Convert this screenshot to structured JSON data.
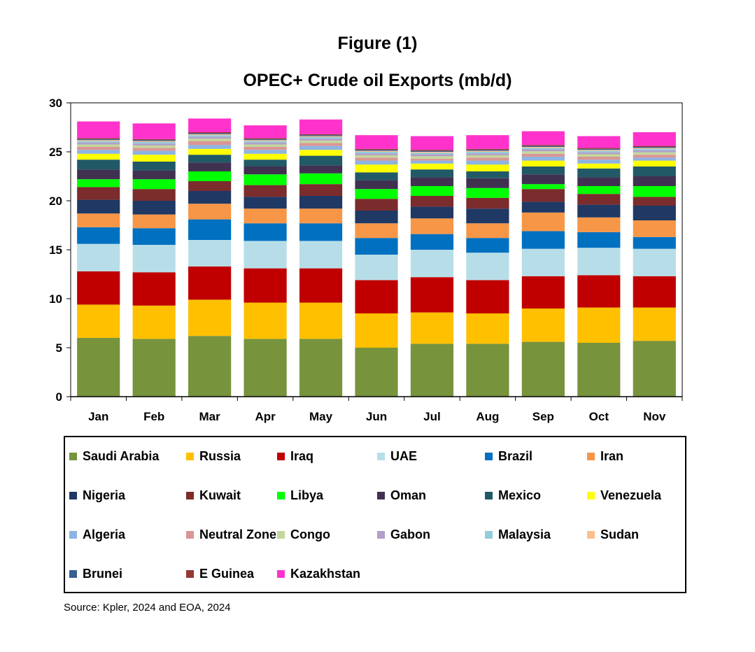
{
  "figure_label": "Figure (1)",
  "source": "Source: Kpler, 2024 and EOA, 2024",
  "chart_data": {
    "type": "bar",
    "stacked": true,
    "title": "OPEC+ Crude oil Exports (mb/d)",
    "xlabel": "",
    "ylabel": "",
    "ylim": [
      0,
      30
    ],
    "yticks": [
      "0",
      "5",
      "10",
      "15",
      "20",
      "25",
      "30"
    ],
    "grid": false,
    "legend_position": "bottom",
    "categories": [
      "Jan",
      "Feb",
      "Mar",
      "Apr",
      "May",
      "Jun",
      "Jul",
      "Aug",
      "Sep",
      "Oct",
      "Nov"
    ],
    "series": [
      {
        "name": "Saudi Arabia",
        "color": "#77933C",
        "values": [
          6.0,
          5.9,
          6.2,
          5.9,
          5.9,
          5.0,
          5.4,
          5.4,
          5.6,
          5.5,
          5.7
        ]
      },
      {
        "name": "Russia",
        "color": "#FFC000",
        "values": [
          3.4,
          3.4,
          3.7,
          3.7,
          3.7,
          3.5,
          3.2,
          3.1,
          3.4,
          3.6,
          3.4
        ]
      },
      {
        "name": "Iraq",
        "color": "#C00000",
        "values": [
          3.4,
          3.4,
          3.4,
          3.5,
          3.5,
          3.4,
          3.6,
          3.4,
          3.3,
          3.3,
          3.2
        ]
      },
      {
        "name": "UAE",
        "color": "#B7DEE8",
        "values": [
          2.8,
          2.8,
          2.7,
          2.8,
          2.8,
          2.6,
          2.8,
          2.8,
          2.8,
          2.8,
          2.8
        ]
      },
      {
        "name": "Brazil",
        "color": "#0070C0",
        "values": [
          1.7,
          1.7,
          2.1,
          1.8,
          1.8,
          1.7,
          1.6,
          1.5,
          1.8,
          1.6,
          1.2
        ]
      },
      {
        "name": "Iran",
        "color": "#F79646",
        "values": [
          1.4,
          1.4,
          1.6,
          1.5,
          1.5,
          1.5,
          1.6,
          1.5,
          1.9,
          1.5,
          1.7
        ]
      },
      {
        "name": "Nigeria",
        "color": "#1F3864",
        "values": [
          1.4,
          1.4,
          1.3,
          1.2,
          1.3,
          1.3,
          1.2,
          1.5,
          1.1,
          1.3,
          1.5
        ]
      },
      {
        "name": "Kuwait",
        "color": "#7B2C2C",
        "values": [
          1.3,
          1.2,
          1.0,
          1.2,
          1.2,
          1.2,
          1.1,
          1.1,
          1.3,
          1.1,
          0.9
        ]
      },
      {
        "name": "Libya",
        "color": "#00FF00",
        "values": [
          0.8,
          1.0,
          1.0,
          1.1,
          1.1,
          1.0,
          1.0,
          1.0,
          0.5,
          0.8,
          1.1
        ]
      },
      {
        "name": "Oman",
        "color": "#403151",
        "values": [
          1.0,
          0.9,
          0.9,
          0.8,
          0.8,
          0.9,
          0.9,
          1.0,
          1.0,
          0.9,
          1.0
        ]
      },
      {
        "name": "Mexico",
        "color": "#215967",
        "values": [
          1.0,
          0.9,
          0.8,
          0.7,
          1.0,
          0.8,
          0.8,
          0.7,
          0.8,
          0.9,
          1.0
        ]
      },
      {
        "name": "Venezuela",
        "color": "#FFFF00",
        "values": [
          0.6,
          0.7,
          0.6,
          0.6,
          0.6,
          0.8,
          0.6,
          0.7,
          0.6,
          0.5,
          0.6
        ]
      },
      {
        "name": "Algeria",
        "color": "#8DB4E2",
        "values": [
          0.4,
          0.4,
          0.4,
          0.4,
          0.4,
          0.4,
          0.3,
          0.4,
          0.4,
          0.4,
          0.3
        ]
      },
      {
        "name": "Neutral Zone",
        "color": "#DA9694",
        "values": [
          0.3,
          0.3,
          0.4,
          0.3,
          0.3,
          0.3,
          0.2,
          0.3,
          0.3,
          0.3,
          0.3
        ]
      },
      {
        "name": "Congo",
        "color": "#C4D79B",
        "values": [
          0.25,
          0.25,
          0.25,
          0.25,
          0.25,
          0.25,
          0.25,
          0.25,
          0.25,
          0.25,
          0.25
        ]
      },
      {
        "name": "Gabon",
        "color": "#B1A0C7",
        "values": [
          0.2,
          0.2,
          0.2,
          0.2,
          0.2,
          0.2,
          0.2,
          0.2,
          0.2,
          0.2,
          0.2
        ]
      },
      {
        "name": "Malaysia",
        "color": "#92CDDC",
        "values": [
          0.15,
          0.15,
          0.15,
          0.15,
          0.15,
          0.15,
          0.15,
          0.15,
          0.15,
          0.15,
          0.15
        ]
      },
      {
        "name": "Sudan",
        "color": "#FABF8F",
        "values": [
          0.1,
          0.1,
          0.1,
          0.1,
          0.1,
          0.1,
          0.1,
          0.1,
          0.1,
          0.1,
          0.1
        ]
      },
      {
        "name": "Brunei",
        "color": "#366092",
        "values": [
          0.1,
          0.1,
          0.1,
          0.1,
          0.1,
          0.1,
          0.1,
          0.1,
          0.1,
          0.1,
          0.1
        ]
      },
      {
        "name": "E Guinea",
        "color": "#953735",
        "values": [
          0.1,
          0.1,
          0.1,
          0.1,
          0.1,
          0.1,
          0.1,
          0.1,
          0.1,
          0.1,
          0.1
        ]
      },
      {
        "name": "Kazakhstan",
        "color": "#FF33CC",
        "values": [
          1.7,
          1.6,
          1.4,
          1.3,
          1.5,
          1.4,
          1.4,
          1.4,
          1.4,
          1.2,
          1.4
        ]
      }
    ]
  }
}
